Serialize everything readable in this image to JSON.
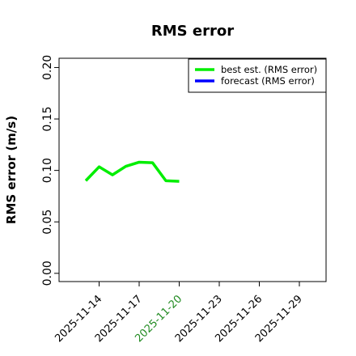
{
  "chart_data": {
    "type": "line",
    "title": "RMS error",
    "y_label": "RMS error (m/s)",
    "x": [
      "2025-11-13",
      "2025-11-14",
      "2025-11-15",
      "2025-11-16",
      "2025-11-17",
      "2025-11-18",
      "2025-11-19",
      "2025-11-20"
    ],
    "series": [
      {
        "name": "best est. (RMS error)",
        "color": "#00ee00",
        "values": [
          0.09,
          0.1035,
          0.0957,
          0.104,
          0.108,
          0.1075,
          0.09,
          0.0894
        ]
      },
      {
        "name": "forecast (RMS error)",
        "color": "#0000ff",
        "values": [
          null,
          null,
          null,
          null,
          null,
          null,
          null,
          null
        ]
      }
    ],
    "xlim": [
      "2025-11-11",
      "2025-12-01"
    ],
    "xticks": [
      "2025-11-14",
      "2025-11-17",
      "2025-11-20",
      "2025-11-23",
      "2025-11-26",
      "2025-11-29"
    ],
    "highlight_tick": 2,
    "highlight_color": "#228b22",
    "ylim": [
      -0.008,
      0.209
    ],
    "yticks": [
      {
        "value": 0,
        "label": "0.00"
      },
      {
        "value": 0.05,
        "label": "0.05"
      },
      {
        "value": 0.1,
        "label": "0.10"
      },
      {
        "value": 0.15,
        "label": "0.15"
      },
      {
        "value": 0.2,
        "label": "0.20"
      }
    ],
    "legend": "upper right",
    "grid": false
  }
}
